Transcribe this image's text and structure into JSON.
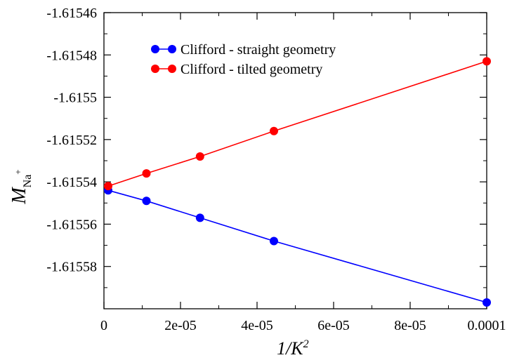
{
  "chart_data": {
    "type": "line",
    "title": "",
    "xlabel": {
      "main": "1/K",
      "sup": "2"
    },
    "ylabel": {
      "main": "M",
      "sub": "Na",
      "sup": "+"
    },
    "xlim": [
      0,
      0.0001
    ],
    "ylim": [
      -1.6156,
      -1.61546
    ],
    "x_ticks": [
      0,
      2e-05,
      4e-05,
      6e-05,
      8e-05,
      0.0001
    ],
    "x_tick_labels": [
      "0",
      "2e-05",
      "4e-05",
      "6e-05",
      "8e-05",
      "0.0001"
    ],
    "y_ticks": [
      -1.61546,
      -1.61548,
      -1.6155,
      -1.61552,
      -1.61554,
      -1.61556,
      -1.61558
    ],
    "y_tick_labels": [
      "-1.61546",
      "-1.61548",
      "-1.6155",
      "-1.61552",
      "-1.61554",
      "-1.61556",
      "-1.61558"
    ],
    "grid": false,
    "legend_position": "top-left",
    "series": [
      {
        "name": "Clifford - straight geometry",
        "color": "#0000ff",
        "x": [
          1.1e-06,
          1.11e-05,
          2.51e-05,
          4.44e-05,
          0.0001
        ],
        "y": [
          -1.615544,
          -1.615549,
          -1.615557,
          -1.615568,
          -1.615597
        ]
      },
      {
        "name": "Clifford - tilted geometry",
        "color": "#ff0000",
        "x": [
          1.1e-06,
          1.11e-05,
          2.51e-05,
          4.44e-05,
          0.0001
        ],
        "y": [
          -1.615542,
          -1.615536,
          -1.615528,
          -1.615516,
          -1.615483
        ]
      }
    ]
  }
}
